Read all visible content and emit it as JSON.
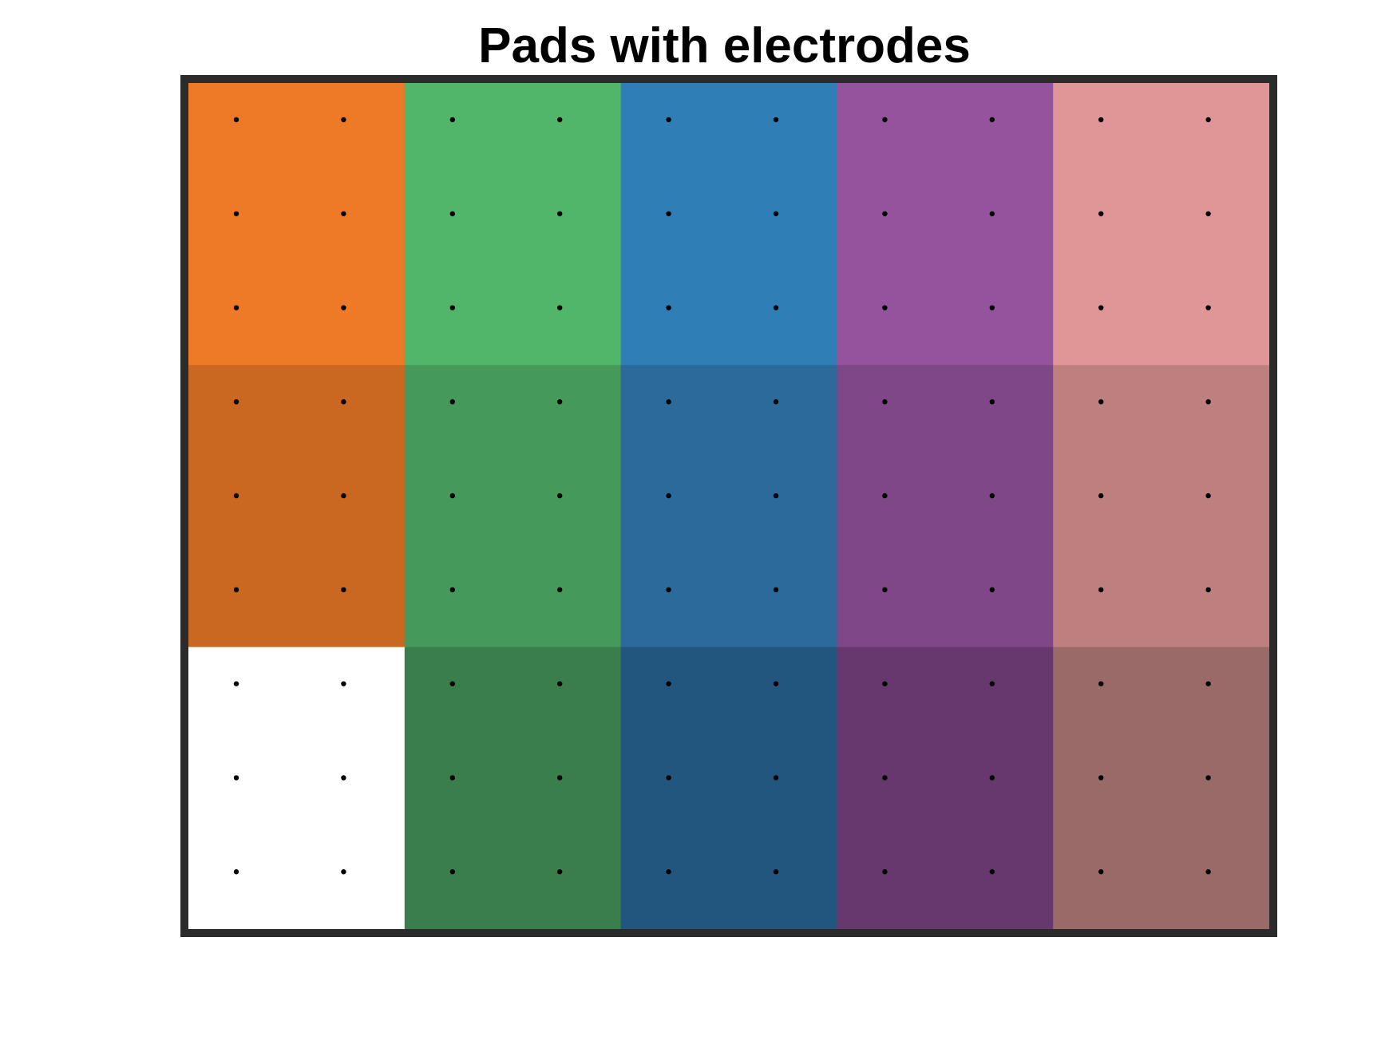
{
  "chart_data": {
    "type": "heatmap",
    "title": "Pads with electrodes",
    "xlabel": "",
    "ylabel": "",
    "grid": false,
    "legend": "none",
    "frame_color": "#2b2b2b",
    "electrode_color": "#000000",
    "pad_columns": 5,
    "pad_rows": 3,
    "electrodes_per_pad": {
      "columns": 2,
      "rows": 3
    },
    "pads": [
      {
        "row": 0,
        "col": 0,
        "color": "#EE7A27"
      },
      {
        "row": 0,
        "col": 1,
        "color": "#52B66A"
      },
      {
        "row": 0,
        "col": 2,
        "color": "#307EB6"
      },
      {
        "row": 0,
        "col": 3,
        "color": "#95539D"
      },
      {
        "row": 0,
        "col": 4,
        "color": "#E09696"
      },
      {
        "row": 1,
        "col": 0,
        "color": "#CA6720"
      },
      {
        "row": 1,
        "col": 1,
        "color": "#459A5B"
      },
      {
        "row": 1,
        "col": 2,
        "color": "#2B6A9A"
      },
      {
        "row": 1,
        "col": 3,
        "color": "#7E4785"
      },
      {
        "row": 1,
        "col": 4,
        "color": "#BE807F"
      },
      {
        "row": 2,
        "col": 0,
        "color": "#FFFFFF"
      },
      {
        "row": 2,
        "col": 1,
        "color": "#397E4B"
      },
      {
        "row": 2,
        "col": 2,
        "color": "#22567E"
      },
      {
        "row": 2,
        "col": 3,
        "color": "#67386D"
      },
      {
        "row": 2,
        "col": 4,
        "color": "#9A6A69"
      }
    ]
  }
}
